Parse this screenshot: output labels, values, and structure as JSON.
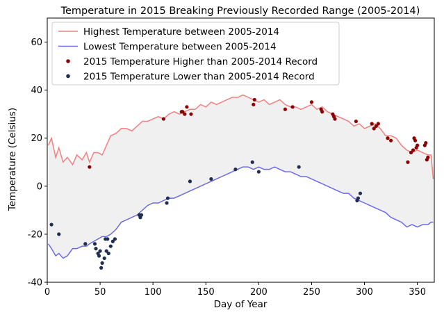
{
  "chart_data": {
    "type": "line",
    "title": "Temperature in 2015 Breaking Previously Recorded Range (2005-2014)",
    "xlabel": "Day of Year",
    "ylabel": "Temperature (Celsius)",
    "xlim": [
      0,
      366
    ],
    "ylim": [
      -40,
      70
    ],
    "xticks": [
      0,
      50,
      100,
      150,
      200,
      250,
      300,
      350
    ],
    "yticks": [
      -40,
      -20,
      0,
      20,
      40,
      60
    ],
    "fill_between": {
      "color": "#f0f0f0",
      "between": [
        "Highest Temperature between 2005-2014",
        "Lowest Temperature between 2005-2014"
      ]
    },
    "legend": {
      "location": "upper-left"
    },
    "series": [
      {
        "name": "Highest Temperature between 2005-2014",
        "kind": "line",
        "color": "#f08080",
        "x": [
          1,
          4,
          8,
          11,
          15,
          19,
          24,
          28,
          33,
          37,
          40,
          44,
          48,
          52,
          56,
          60,
          65,
          70,
          75,
          80,
          85,
          90,
          95,
          100,
          105,
          110,
          115,
          120,
          125,
          130,
          135,
          140,
          145,
          150,
          155,
          160,
          165,
          170,
          175,
          180,
          185,
          190,
          195,
          200,
          205,
          210,
          215,
          220,
          225,
          230,
          235,
          240,
          245,
          250,
          255,
          260,
          265,
          270,
          275,
          280,
          285,
          290,
          295,
          300,
          305,
          310,
          315,
          320,
          325,
          330,
          335,
          340,
          345,
          350,
          355,
          360,
          363,
          365
        ],
        "y": [
          17,
          20,
          12,
          16,
          10,
          12,
          9,
          13,
          11,
          14,
          10,
          14,
          14,
          13,
          17,
          21,
          22,
          24,
          24,
          23,
          25,
          27,
          27,
          28,
          29,
          28,
          30,
          31,
          30,
          31,
          32,
          32,
          34,
          33,
          35,
          34,
          35,
          36,
          37,
          37,
          38,
          37,
          36,
          35,
          36,
          34,
          35,
          36,
          34,
          33,
          33,
          32,
          33,
          34,
          32,
          33,
          31,
          30,
          29,
          28,
          27,
          25,
          26,
          24,
          25,
          26,
          24,
          21,
          21,
          20,
          17,
          15,
          14,
          15,
          14,
          13,
          13,
          3
        ]
      },
      {
        "name": "Lowest Temperature between 2005-2014",
        "kind": "line",
        "color": "#6a6ae8",
        "x": [
          1,
          4,
          8,
          11,
          15,
          19,
          24,
          28,
          33,
          37,
          40,
          44,
          48,
          52,
          56,
          60,
          65,
          70,
          75,
          80,
          85,
          90,
          95,
          100,
          105,
          110,
          115,
          120,
          125,
          130,
          135,
          140,
          145,
          150,
          155,
          160,
          165,
          170,
          175,
          180,
          185,
          190,
          195,
          200,
          205,
          210,
          215,
          220,
          225,
          230,
          235,
          240,
          245,
          250,
          255,
          260,
          265,
          270,
          275,
          280,
          285,
          290,
          295,
          300,
          305,
          310,
          315,
          320,
          325,
          330,
          335,
          340,
          345,
          350,
          355,
          360,
          363,
          365
        ],
        "y": [
          -24,
          -26,
          -29,
          -28,
          -30,
          -29,
          -26,
          -26,
          -25,
          -25,
          -24,
          -23,
          -22,
          -21,
          -21,
          -20,
          -18,
          -15,
          -14,
          -13,
          -12,
          -10,
          -8,
          -7,
          -7,
          -6,
          -5,
          -5,
          -4,
          -3,
          -2,
          -1,
          0,
          1,
          2,
          3,
          4,
          5,
          6,
          7,
          8,
          8,
          7,
          8,
          7,
          7,
          8,
          7,
          6,
          6,
          5,
          4,
          4,
          3,
          2,
          1,
          0,
          -1,
          -2,
          -3,
          -3,
          -5,
          -6,
          -7,
          -8,
          -9,
          -10,
          -11,
          -13,
          -14,
          -15,
          -17,
          -16,
          -17,
          -16,
          -16,
          -15,
          -15
        ]
      },
      {
        "name": "2015 Temperature Higher than 2005-2014 Record",
        "kind": "scatter",
        "color": "#8b0000",
        "x": [
          40,
          110,
          127,
          128,
          130,
          132,
          136,
          195,
          196,
          225,
          232,
          250,
          259,
          260,
          270,
          271,
          272,
          292,
          307,
          309,
          311,
          313,
          322,
          325,
          341,
          344,
          346,
          347,
          348,
          349,
          350,
          357,
          358,
          359,
          360
        ],
        "y": [
          8,
          28,
          31,
          31,
          30,
          33,
          30,
          34,
          36,
          32,
          33,
          35,
          32,
          31,
          30,
          29,
          28,
          27,
          26,
          24,
          25,
          26,
          20,
          19,
          10,
          14,
          15,
          20,
          19,
          16,
          17,
          17,
          18,
          11,
          12
        ]
      },
      {
        "name": "2015 Temperature Lower than 2005-2014 Record",
        "kind": "scatter",
        "color": "#1f2d4f",
        "x": [
          4,
          11,
          36,
          45,
          46,
          48,
          49,
          50,
          51,
          52,
          54,
          55,
          56,
          57,
          58,
          60,
          62,
          64,
          87,
          88,
          89,
          113,
          114,
          135,
          155,
          178,
          194,
          200,
          238,
          293,
          294,
          296
        ],
        "y": [
          -16,
          -20,
          -24,
          -24,
          -26,
          -28,
          -29,
          -27,
          -34,
          -32,
          -30,
          -22,
          -27,
          -22,
          -28,
          -25,
          -23,
          -22,
          -12,
          -13,
          -12,
          -7,
          -5,
          2,
          3,
          7,
          10,
          6,
          8,
          -6,
          -5,
          -3
        ]
      }
    ]
  }
}
